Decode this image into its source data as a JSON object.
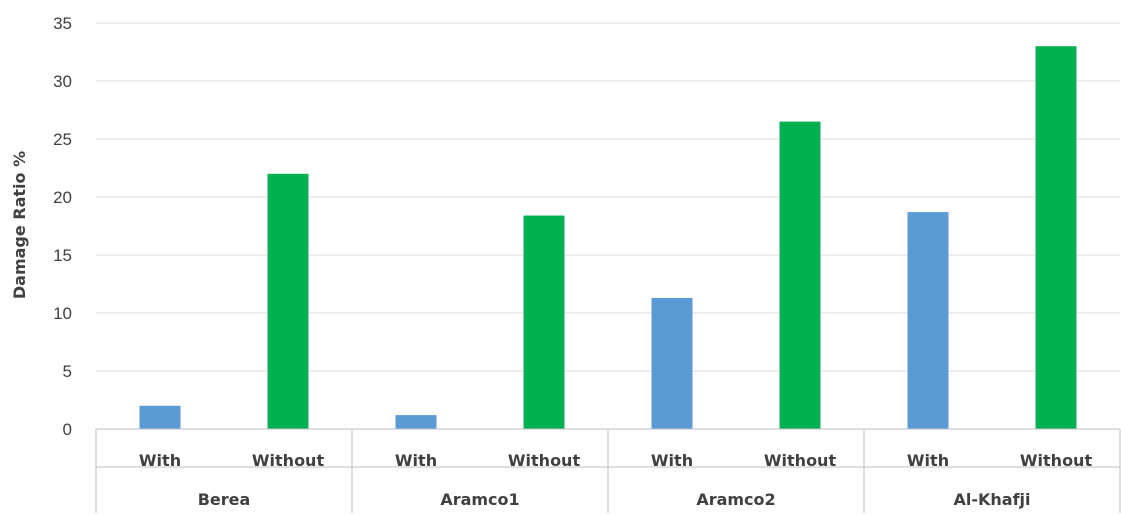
{
  "chart_data": {
    "type": "bar",
    "ylabel": "Damage Ratio %",
    "ylim": [
      0,
      35
    ],
    "ytick_step": 5,
    "grid": true,
    "groups": [
      {
        "name": "Berea",
        "categories": [
          "With",
          "Without"
        ],
        "values": [
          2.0,
          22.0
        ]
      },
      {
        "name": "Aramco1",
        "categories": [
          "With",
          "Without"
        ],
        "values": [
          1.2,
          18.4
        ]
      },
      {
        "name": "Aramco2",
        "categories": [
          "With",
          "Without"
        ],
        "values": [
          11.3,
          26.5
        ]
      },
      {
        "name": "Al-Khafji",
        "categories": [
          "With",
          "Without"
        ],
        "values": [
          18.7,
          33.0
        ]
      }
    ],
    "colors": {
      "With": "#5b9bd5",
      "Without": "#00b050"
    }
  }
}
